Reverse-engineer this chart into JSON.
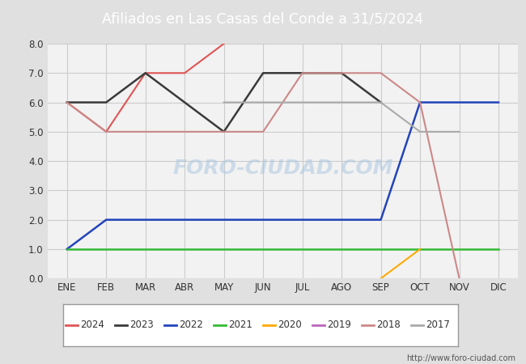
{
  "title": "Afiliados en Las Casas del Conde a 31/5/2024",
  "header_bg": "#4d7cc7",
  "months": [
    "ENE",
    "FEB",
    "MAR",
    "ABR",
    "MAY",
    "JUN",
    "JUL",
    "AGO",
    "SEP",
    "OCT",
    "NOV",
    "DIC"
  ],
  "ylim": [
    0.0,
    8.0
  ],
  "yticks": [
    0.0,
    1.0,
    2.0,
    3.0,
    4.0,
    5.0,
    6.0,
    7.0,
    8.0
  ],
  "series": [
    {
      "label": "2024",
      "color": "#e05555",
      "linewidth": 1.5,
      "data": [
        6,
        5,
        7,
        7,
        8,
        null,
        null,
        null,
        null,
        null,
        null,
        null
      ]
    },
    {
      "label": "2023",
      "color": "#3a3a3a",
      "linewidth": 1.8,
      "data": [
        6,
        6,
        7,
        6,
        5,
        7,
        7,
        7,
        6,
        null,
        null,
        null
      ]
    },
    {
      "label": "2022",
      "color": "#2244bb",
      "linewidth": 1.8,
      "data": [
        1,
        2,
        2,
        2,
        2,
        2,
        2,
        2,
        2,
        6,
        6,
        6
      ]
    },
    {
      "label": "2021",
      "color": "#33bb33",
      "linewidth": 1.8,
      "data": [
        1,
        1,
        1,
        1,
        1,
        1,
        1,
        1,
        1,
        1,
        1,
        1
      ]
    },
    {
      "label": "2020",
      "color": "#ffaa00",
      "linewidth": 1.5,
      "data": [
        null,
        null,
        null,
        null,
        null,
        null,
        null,
        null,
        0,
        1,
        null,
        null
      ]
    },
    {
      "label": "2019",
      "color": "#bb66bb",
      "linewidth": 1.5,
      "data": [
        null,
        null,
        null,
        null,
        null,
        null,
        null,
        null,
        null,
        null,
        null,
        null
      ]
    },
    {
      "label": "2018",
      "color": "#cc8888",
      "linewidth": 1.5,
      "data": [
        6,
        5,
        5,
        5,
        5,
        5,
        7,
        7,
        7,
        6,
        0,
        null
      ]
    },
    {
      "label": "2017",
      "color": "#aaaaaa",
      "linewidth": 1.5,
      "data": [
        null,
        null,
        null,
        null,
        6,
        6,
        6,
        6,
        6,
        5,
        5,
        null
      ]
    }
  ],
  "watermark": "FORO-CIUDAD.COM",
  "url": "http://www.foro-ciudad.com",
  "bg_color": "#e0e0e0",
  "plot_bg_color": "#f2f2f2",
  "grid_color": "#cccccc"
}
